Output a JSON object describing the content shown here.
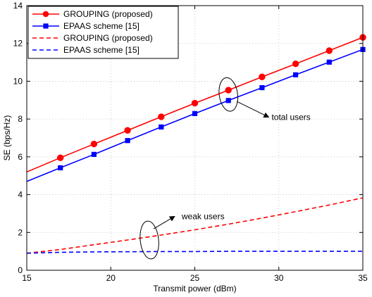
{
  "chart_data": {
    "type": "line",
    "xlabel": "Transmit power (dBm)",
    "ylabel": "SE (bps/Hz)",
    "xlim": [
      15,
      35
    ],
    "ylim": [
      0,
      14
    ],
    "xticks": [
      15,
      20,
      25,
      30,
      35
    ],
    "yticks": [
      0,
      2,
      4,
      6,
      8,
      10,
      12,
      14
    ],
    "grid": true,
    "legend_position": "top-left",
    "series": [
      {
        "name": "GROUPING (proposed)",
        "color": "#ff0000",
        "style": "solid",
        "marker": "circle",
        "x": [
          15,
          17,
          19,
          21,
          23,
          25,
          27,
          29,
          31,
          33,
          35
        ],
        "y": [
          5.2,
          5.95,
          6.68,
          7.4,
          8.12,
          8.84,
          9.53,
          10.23,
          10.92,
          11.62,
          12.32
        ]
      },
      {
        "name": "EPAAS scheme [15]",
        "color": "#0000ff",
        "style": "solid",
        "marker": "square",
        "x": [
          15,
          17,
          19,
          21,
          23,
          25,
          27,
          29,
          31,
          33,
          35
        ],
        "y": [
          4.7,
          5.42,
          6.13,
          6.86,
          7.58,
          8.29,
          8.98,
          9.66,
          10.34,
          11.01,
          11.68
        ]
      },
      {
        "name": "GROUPING (proposed)",
        "color": "#ff0000",
        "style": "dashed",
        "marker": "none",
        "x": [
          15,
          17,
          19,
          21,
          23,
          25,
          27,
          29,
          31,
          33,
          35
        ],
        "y": [
          0.9,
          1.1,
          1.35,
          1.6,
          1.86,
          2.14,
          2.44,
          2.76,
          3.1,
          3.45,
          3.83
        ]
      },
      {
        "name": "EPAAS scheme [15]",
        "color": "#0000ff",
        "style": "dashed",
        "marker": "none",
        "x": [
          15,
          17,
          19,
          21,
          23,
          25,
          27,
          29,
          31,
          33,
          35
        ],
        "y": [
          0.9,
          0.95,
          0.97,
          0.98,
          0.99,
          0.99,
          1.0,
          1.0,
          1.0,
          1.0,
          1.0
        ]
      }
    ],
    "annotations": [
      {
        "text": "total users",
        "ellipse_center": [
          27,
          9.3
        ],
        "arrow_to": [
          29.4,
          8.1
        ]
      },
      {
        "text": "weak users",
        "ellipse_center": [
          22.3,
          1.6
        ],
        "arrow_to": [
          23.8,
          2.85
        ]
      }
    ]
  }
}
